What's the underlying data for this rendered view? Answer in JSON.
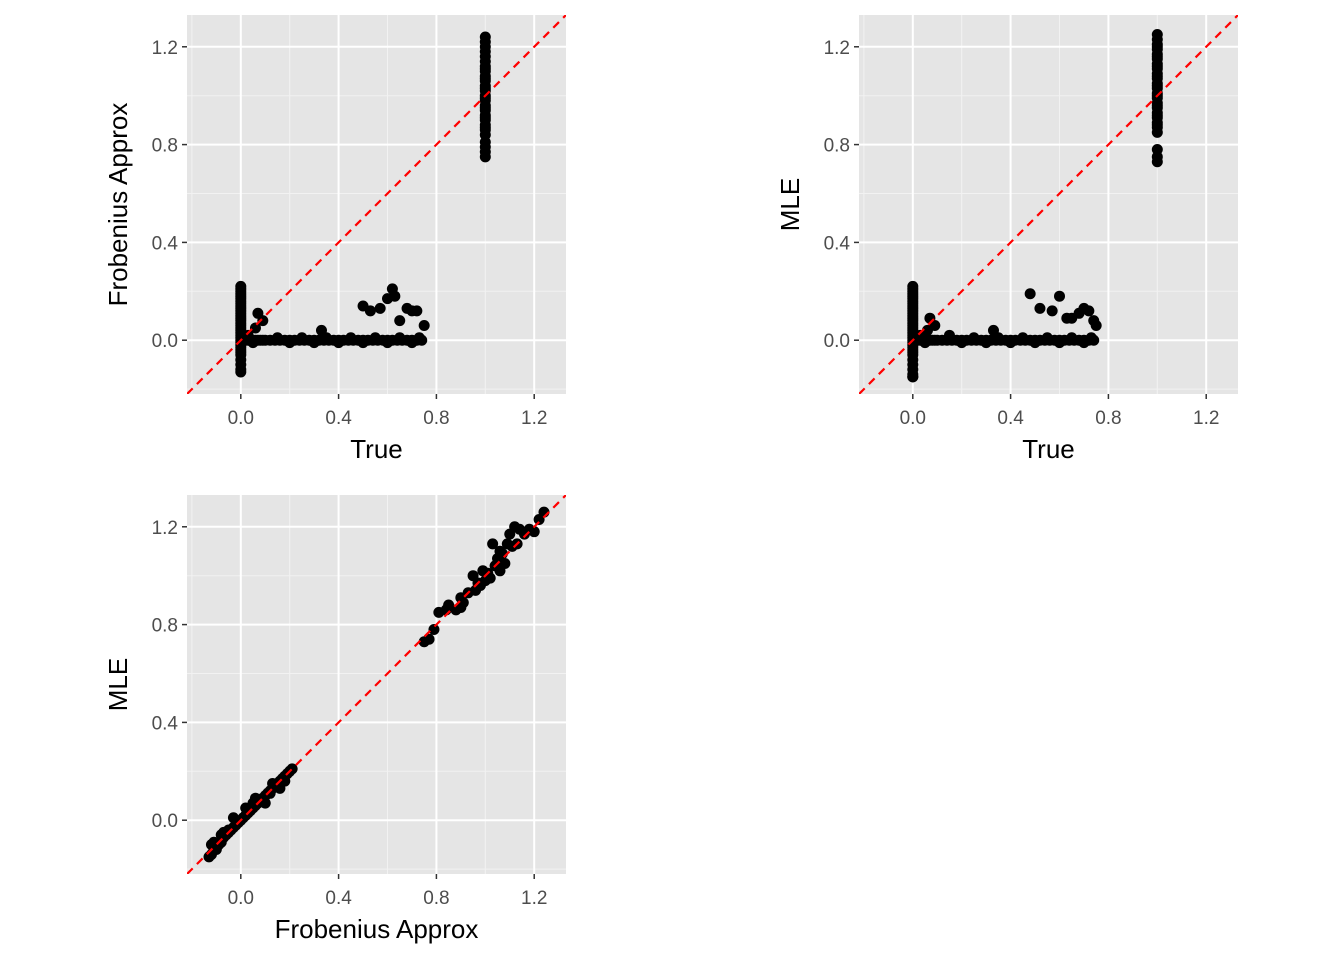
{
  "colors": {
    "panel_bg": "#e5e5e5",
    "grid": "#ffffff",
    "points": "#000000",
    "ref_line": "#ff0000"
  },
  "chart_data": [
    {
      "type": "scatter",
      "xlabel": "True",
      "ylabel": "Frobenius Approx",
      "xlim": [
        -0.22,
        1.33
      ],
      "ylim": [
        -0.22,
        1.33
      ],
      "x_ticks": [
        "0.0",
        "0.4",
        "0.8",
        "1.2"
      ],
      "y_ticks": [
        "0.0",
        "0.4",
        "0.8",
        "1.2"
      ],
      "grid": true,
      "reference_line": {
        "slope": 1,
        "intercept": 0,
        "style": "dashed",
        "color": "#ff0000"
      },
      "points": {
        "x": [
          0,
          0,
          0,
          0,
          0,
          0,
          0,
          0,
          0,
          0,
          0,
          0,
          0,
          0,
          0,
          0,
          0,
          0,
          0,
          0,
          0,
          0,
          0,
          0,
          0,
          0,
          0,
          0,
          0,
          0,
          0,
          0,
          0,
          0.01,
          0.02,
          0.03,
          0.04,
          0.05,
          0.06,
          0.07,
          0.08,
          0.09,
          0.1,
          0.12,
          0.14,
          0.16,
          0.18,
          0.2,
          0.22,
          0.24,
          0.26,
          0.28,
          0.3,
          0.32,
          0.34,
          0.36,
          0.38,
          0.4,
          0.42,
          0.44,
          0.46,
          0.48,
          0.5,
          0.52,
          0.54,
          0.56,
          0.58,
          0.6,
          0.62,
          0.64,
          0.66,
          0.68,
          0.7,
          0.72,
          0.74,
          0.07,
          0.09,
          0.06,
          0.03,
          0.05,
          0.15,
          0.2,
          0.25,
          0.3,
          0.33,
          0.35,
          0.4,
          0.45,
          0.5,
          0.55,
          0.6,
          0.65,
          0.7,
          0.73,
          0.5,
          0.53,
          0.57,
          0.6,
          0.62,
          0.63,
          0.65,
          0.68,
          0.7,
          0.72,
          0.75,
          1,
          1,
          1,
          1,
          1,
          1,
          1,
          1,
          1,
          1,
          1,
          1,
          1,
          1,
          1,
          1,
          1,
          1,
          1,
          1,
          1,
          1,
          1,
          1,
          1,
          1,
          1,
          1,
          1,
          1,
          1,
          1
        ],
        "y": [
          -0.13,
          -0.12,
          -0.1,
          -0.08,
          -0.06,
          -0.05,
          -0.04,
          -0.03,
          -0.02,
          -0.01,
          0,
          0.01,
          0.02,
          0.03,
          0.04,
          0.05,
          0.06,
          0.07,
          0.08,
          0.09,
          0.1,
          0.11,
          0.12,
          0.13,
          0.14,
          0.15,
          0.16,
          0.17,
          0.18,
          0.19,
          0.2,
          0.21,
          0.22,
          0,
          0,
          0,
          0,
          0,
          0,
          0,
          0,
          0,
          0,
          0,
          0,
          0,
          0,
          0,
          0,
          0,
          0,
          0,
          0,
          0,
          0,
          0,
          0,
          0,
          0,
          0,
          0,
          0,
          0,
          0,
          0,
          0,
          0,
          0,
          0,
          0,
          0,
          0,
          0,
          0,
          0,
          0.11,
          0.08,
          0.05,
          0.02,
          -0.01,
          0.01,
          -0.01,
          0.01,
          -0.01,
          0.04,
          0.01,
          -0.01,
          0.01,
          -0.01,
          0.01,
          -0.01,
          0.01,
          -0.01,
          0.01,
          0.14,
          0.12,
          0.13,
          0.17,
          0.21,
          0.18,
          0.08,
          0.13,
          0.12,
          0.12,
          0.06,
          0.75,
          0.77,
          0.79,
          0.81,
          0.84,
          0.86,
          0.88,
          0.9,
          0.92,
          0.94,
          0.96,
          0.98,
          1,
          1.02,
          1.04,
          1.06,
          1.08,
          1.1,
          1.12,
          1.14,
          1.16,
          1.18,
          1.2,
          1.22,
          1.24,
          0.87,
          0.91,
          0.95,
          0.99,
          1.03,
          1.07,
          1.11
        ]
      }
    },
    {
      "type": "scatter",
      "xlabel": "True",
      "ylabel": "MLE",
      "xlim": [
        -0.22,
        1.33
      ],
      "ylim": [
        -0.22,
        1.33
      ],
      "x_ticks": [
        "0.0",
        "0.4",
        "0.8",
        "1.2"
      ],
      "y_ticks": [
        "0.0",
        "0.4",
        "0.8",
        "1.2"
      ],
      "grid": true,
      "reference_line": {
        "slope": 1,
        "intercept": 0,
        "style": "dashed",
        "color": "#ff0000"
      },
      "points": {
        "x": [
          0,
          0,
          0,
          0,
          0,
          0,
          0,
          0,
          0,
          0,
          0,
          0,
          0,
          0,
          0,
          0,
          0,
          0,
          0,
          0,
          0,
          0,
          0,
          0,
          0,
          0,
          0,
          0,
          0,
          0,
          0,
          0,
          0,
          0,
          0,
          0.01,
          0.02,
          0.03,
          0.04,
          0.05,
          0.06,
          0.07,
          0.08,
          0.09,
          0.1,
          0.12,
          0.14,
          0.16,
          0.18,
          0.2,
          0.22,
          0.24,
          0.26,
          0.28,
          0.3,
          0.32,
          0.34,
          0.36,
          0.38,
          0.4,
          0.42,
          0.44,
          0.46,
          0.48,
          0.5,
          0.52,
          0.54,
          0.56,
          0.58,
          0.6,
          0.62,
          0.64,
          0.66,
          0.68,
          0.7,
          0.72,
          0.74,
          0.07,
          0.09,
          0.06,
          0.03,
          0.05,
          0.15,
          0.2,
          0.25,
          0.3,
          0.33,
          0.35,
          0.4,
          0.45,
          0.5,
          0.55,
          0.6,
          0.65,
          0.7,
          0.73,
          0.48,
          0.52,
          0.57,
          0.6,
          0.63,
          0.65,
          0.68,
          0.7,
          0.72,
          0.74,
          0.75,
          1,
          1,
          1,
          1,
          1,
          1,
          1,
          1,
          1,
          1,
          1,
          1,
          1,
          1,
          1,
          1,
          1,
          1,
          1,
          1,
          1,
          1,
          1,
          1,
          1,
          1,
          1,
          1,
          1,
          1,
          1,
          1,
          1
        ],
        "y": [
          -0.15,
          -0.14,
          -0.12,
          -0.1,
          -0.08,
          -0.06,
          -0.05,
          -0.04,
          -0.03,
          -0.02,
          -0.01,
          0,
          0.01,
          0.02,
          0.03,
          0.04,
          0.05,
          0.06,
          0.07,
          0.08,
          0.09,
          0.1,
          0.11,
          0.12,
          0.13,
          0.14,
          0.15,
          0.16,
          0.17,
          0.18,
          0.19,
          0.2,
          0.21,
          0.22,
          -0.15,
          0,
          0,
          0,
          0,
          0,
          0,
          0,
          0,
          0,
          0,
          0,
          0,
          0,
          0,
          0,
          0,
          0,
          0,
          0,
          0,
          0,
          0,
          0,
          0,
          0,
          0,
          0,
          0,
          0,
          0,
          0,
          0,
          0,
          0,
          0,
          0,
          0,
          0,
          0,
          0,
          0,
          0,
          0.09,
          0.06,
          0.04,
          0.02,
          -0.01,
          0.02,
          -0.01,
          0.01,
          -0.01,
          0.04,
          0.01,
          -0.01,
          0.01,
          -0.01,
          0.01,
          -0.01,
          0.01,
          -0.01,
          0.01,
          0.19,
          0.13,
          0.12,
          0.18,
          0.09,
          0.09,
          0.11,
          0.13,
          0.12,
          0.08,
          0.06,
          0.73,
          0.75,
          0.78,
          0.85,
          0.87,
          0.89,
          0.91,
          0.93,
          0.95,
          0.97,
          0.99,
          1.01,
          1.03,
          1.05,
          1.07,
          1.09,
          1.11,
          1.13,
          1.15,
          1.17,
          1.19,
          1.21,
          1.23,
          1.25,
          0.88,
          0.92,
          0.96,
          1,
          1.04,
          1.08,
          1.12,
          1.16,
          1.2
        ]
      }
    },
    {
      "type": "scatter",
      "xlabel": "Frobenius Approx",
      "ylabel": "MLE",
      "xlim": [
        -0.22,
        1.33
      ],
      "ylim": [
        -0.22,
        1.33
      ],
      "x_ticks": [
        "0.0",
        "0.4",
        "0.8",
        "1.2"
      ],
      "y_ticks": [
        "0.0",
        "0.4",
        "0.8",
        "1.2"
      ],
      "grid": true,
      "reference_line": {
        "slope": 1,
        "intercept": 0,
        "style": "dashed",
        "color": "#ff0000"
      },
      "points": {
        "x": [
          -0.13,
          -0.12,
          -0.11,
          -0.1,
          -0.09,
          -0.08,
          -0.07,
          -0.06,
          -0.05,
          -0.04,
          -0.03,
          -0.02,
          -0.01,
          0,
          0.01,
          0.02,
          0.03,
          0.04,
          0.05,
          0.06,
          0.07,
          0.08,
          0.09,
          0.1,
          0.11,
          0.12,
          0.13,
          0.14,
          0.15,
          0.16,
          0.17,
          0.18,
          0.19,
          0.2,
          0.21,
          -0.12,
          -0.1,
          -0.08,
          -0.05,
          0.02,
          0.06,
          0.1,
          0.13,
          0.16,
          0.18,
          -0.11,
          -0.07,
          -0.03,
          0.05,
          0.12,
          0.75,
          0.77,
          0.79,
          0.81,
          0.84,
          0.85,
          0.88,
          0.9,
          0.91,
          0.93,
          0.95,
          0.96,
          0.97,
          0.99,
          1,
          1.01,
          1.02,
          1.03,
          1.04,
          1.05,
          1.06,
          1.07,
          1.08,
          1.09,
          1.1,
          1.11,
          1.12,
          1.14,
          1.16,
          1.18,
          1.2,
          1.22,
          1.24,
          0.9,
          0.98,
          1.06,
          1.13
        ],
        "y": [
          -0.15,
          -0.14,
          -0.12,
          -0.11,
          -0.1,
          -0.09,
          -0.07,
          -0.06,
          -0.05,
          -0.04,
          -0.03,
          -0.02,
          -0.01,
          0,
          0.01,
          0.02,
          0.03,
          0.04,
          0.05,
          0.06,
          0.07,
          0.08,
          0.09,
          0.1,
          0.11,
          0.12,
          0.13,
          0.14,
          0.15,
          0.16,
          0.17,
          0.18,
          0.19,
          0.2,
          0.21,
          -0.1,
          -0.12,
          -0.06,
          -0.04,
          0.05,
          0.09,
          0.07,
          0.15,
          0.13,
          0.16,
          -0.09,
          -0.05,
          0.01,
          0.07,
          0.11,
          0.73,
          0.74,
          0.78,
          0.85,
          0.86,
          0.88,
          0.86,
          0.91,
          0.89,
          0.93,
          1,
          0.94,
          0.97,
          1.02,
          0.98,
          1.01,
          0.99,
          1.13,
          1.04,
          1.07,
          1.02,
          1.09,
          1.05,
          1.13,
          1.17,
          1.12,
          1.2,
          1.19,
          1.17,
          1.19,
          1.18,
          1.23,
          1.26,
          0.87,
          0.96,
          1.1,
          1.13
        ]
      }
    }
  ]
}
